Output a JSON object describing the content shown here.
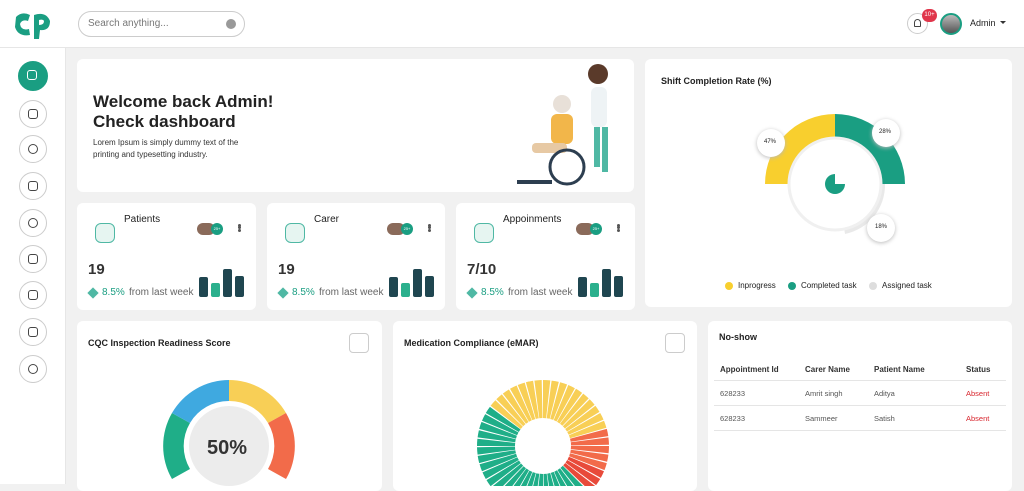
{
  "header": {
    "search_placeholder": "Search anything...",
    "notification_count": "10+",
    "user": "Admin"
  },
  "welcome": {
    "title_line1": "Welcome back Admin!",
    "title_line2": "Check dashboard",
    "text_line1": "Lorem Ipsum is simply dummy text of the",
    "text_line2": "printing and typesetting industry."
  },
  "stats": [
    {
      "title": "Patients",
      "avatar_badge": "25+",
      "value": "19",
      "change": "8.5%",
      "change_text": "from last week"
    },
    {
      "title": "Carer",
      "avatar_badge": "25+",
      "value": "19",
      "change": "8.5%",
      "change_text": "from last week"
    },
    {
      "title": "Appoinments",
      "avatar_badge": "25+",
      "value": "7/10",
      "change": "8.5%",
      "change_text": "from last week"
    }
  ],
  "shift": {
    "title": "Shift Completion Rate (%)",
    "labels": [
      "47%",
      "28%",
      "18%"
    ],
    "legend": [
      "Inprogress",
      "Completed task",
      "Assigned task"
    ]
  },
  "cqc": {
    "title": "CQC Inspection Readiness Score",
    "center": "50%"
  },
  "medication": {
    "title": "Medication Compliance (eMAR)"
  },
  "noshow": {
    "title": "No-show",
    "columns": [
      "Appointment Id",
      "Carer Name",
      "Patient Name",
      "Status"
    ],
    "rows": [
      [
        "628233",
        "Amrit singh",
        "Aditya",
        "Absent"
      ],
      [
        "628233",
        "Sammeer",
        "Satish",
        "Absent"
      ]
    ]
  }
}
